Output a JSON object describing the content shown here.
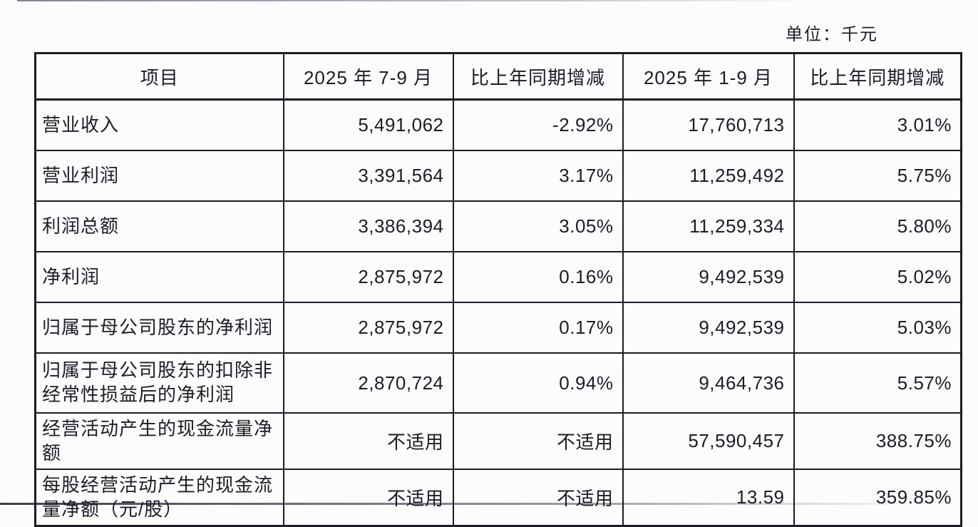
{
  "page": {
    "unit_label": "单位：千元"
  },
  "table": {
    "columns": [
      "项目",
      "2025 年 7-9 月",
      "比上年同期增减",
      "2025 年 1-9 月",
      "比上年同期增减"
    ],
    "rows": [
      [
        "营业收入",
        "5,491,062",
        "-2.92%",
        "17,760,713",
        "3.01%"
      ],
      [
        "营业利润",
        "3,391,564",
        "3.17%",
        "11,259,492",
        "5.75%"
      ],
      [
        "利润总额",
        "3,386,394",
        "3.05%",
        "11,259,334",
        "5.80%"
      ],
      [
        "净利润",
        "2,875,972",
        "0.16%",
        "9,492,539",
        "5.02%"
      ],
      [
        "归属于母公司股东的净利润",
        "2,875,972",
        "0.17%",
        "9,492,539",
        "5.03%"
      ],
      [
        "归属于母公司股东的扣除非经常性损益后的净利润",
        "2,870,724",
        "0.94%",
        "9,464,736",
        "5.57%"
      ],
      [
        "经营活动产生的现金流量净额",
        "不适用",
        "不适用",
        "57,590,457",
        "388.75%"
      ],
      [
        "每股经营活动产生的现金流量净额（元/股）",
        "不适用",
        "不适用",
        "13.59",
        "359.85%"
      ]
    ]
  }
}
